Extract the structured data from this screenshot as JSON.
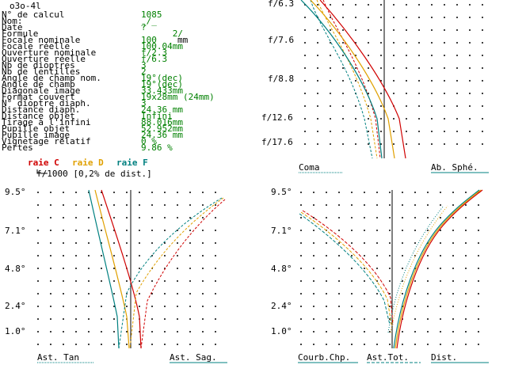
{
  "title": "o3o-4l",
  "params": [
    {
      "label": "N° de calcul",
      "value": "1085",
      "unit": ""
    },
    {
      "label": "Nom:",
      "value": "_/_",
      "unit": ""
    },
    {
      "label": "Date",
      "value": "?",
      "unit": ""
    },
    {
      "label": "Formule",
      "value": "      2/",
      "unit": ""
    },
    {
      "label": "Focale nominale",
      "value": "100",
      "unit": "mm"
    },
    {
      "label": "Focale réelle",
      "value": "100.04mm",
      "unit": ""
    },
    {
      "label": "Ouverture nominale",
      "value": "f/2.3",
      "unit": ""
    },
    {
      "label": "Ouverture réelle",
      "value": "f/6.3",
      "unit": ""
    },
    {
      "label": "Nb de dioptres",
      "value": "3",
      "unit": ""
    },
    {
      "label": "Nb de lentilles",
      "value": "2",
      "unit": ""
    },
    {
      "label": "Angle de champ nom.",
      "value": "19°(dec)",
      "unit": ""
    },
    {
      "label": "Angle de champ",
      "value": "19°(dec)",
      "unit": ""
    },
    {
      "label": "Diagonale image",
      "value": "33.433mm",
      "unit": ""
    },
    {
      "label": "Format couvert",
      "value": "19x28mm (24mm)",
      "unit": ""
    },
    {
      "label": "N° dioptre diaph.",
      "value": "3",
      "unit": ""
    },
    {
      "label": "Distance diaph.",
      "value": "24.36 mm",
      "unit": ""
    },
    {
      "label": "Distance objet",
      "value": "Infini",
      "unit": ""
    },
    {
      "label": "Tirage à l'infini",
      "value": "88.016mm",
      "unit": ""
    },
    {
      "label": "Pupille objet",
      "value": "52.952mm",
      "unit": ""
    },
    {
      "label": "Pupille image",
      "value": "24.36 mm",
      "unit": ""
    },
    {
      "label": "Vignetage relatif",
      "value": "0 %",
      "unit": ""
    },
    {
      "label": "Pertes",
      "value": "9.86 %",
      "unit": ""
    }
  ],
  "legend": {
    "c": "raie C",
    "d": "raie D",
    "f": "raie F",
    "colors": {
      "c": "#d00000",
      "d": "#e0a000",
      "f": "#008080"
    }
  },
  "dist_note": "f/1000 [0,2% de dist.]",
  "coma_panel": {
    "ticks": [
      "f/6.3",
      "f/7.6",
      "f/8.8",
      "f/12.6",
      "f/17.6"
    ],
    "label_left": "Coma",
    "label_right": "Ab. Sphé."
  },
  "astig_panel": {
    "ticks": [
      "9.5°",
      "7.1°",
      "4.8°",
      "2.4°",
      "1.0°"
    ],
    "label_left": "Ast. Tan",
    "label_right": "Ast. Sag."
  },
  "curv_panel": {
    "ticks": [
      "9.5°",
      "7.1°",
      "4.8°",
      "2.4°",
      "1.0°"
    ],
    "label_a": "Courb.Chp.",
    "label_b": "Ast.Tot.",
    "label_c": "Dist."
  }
}
